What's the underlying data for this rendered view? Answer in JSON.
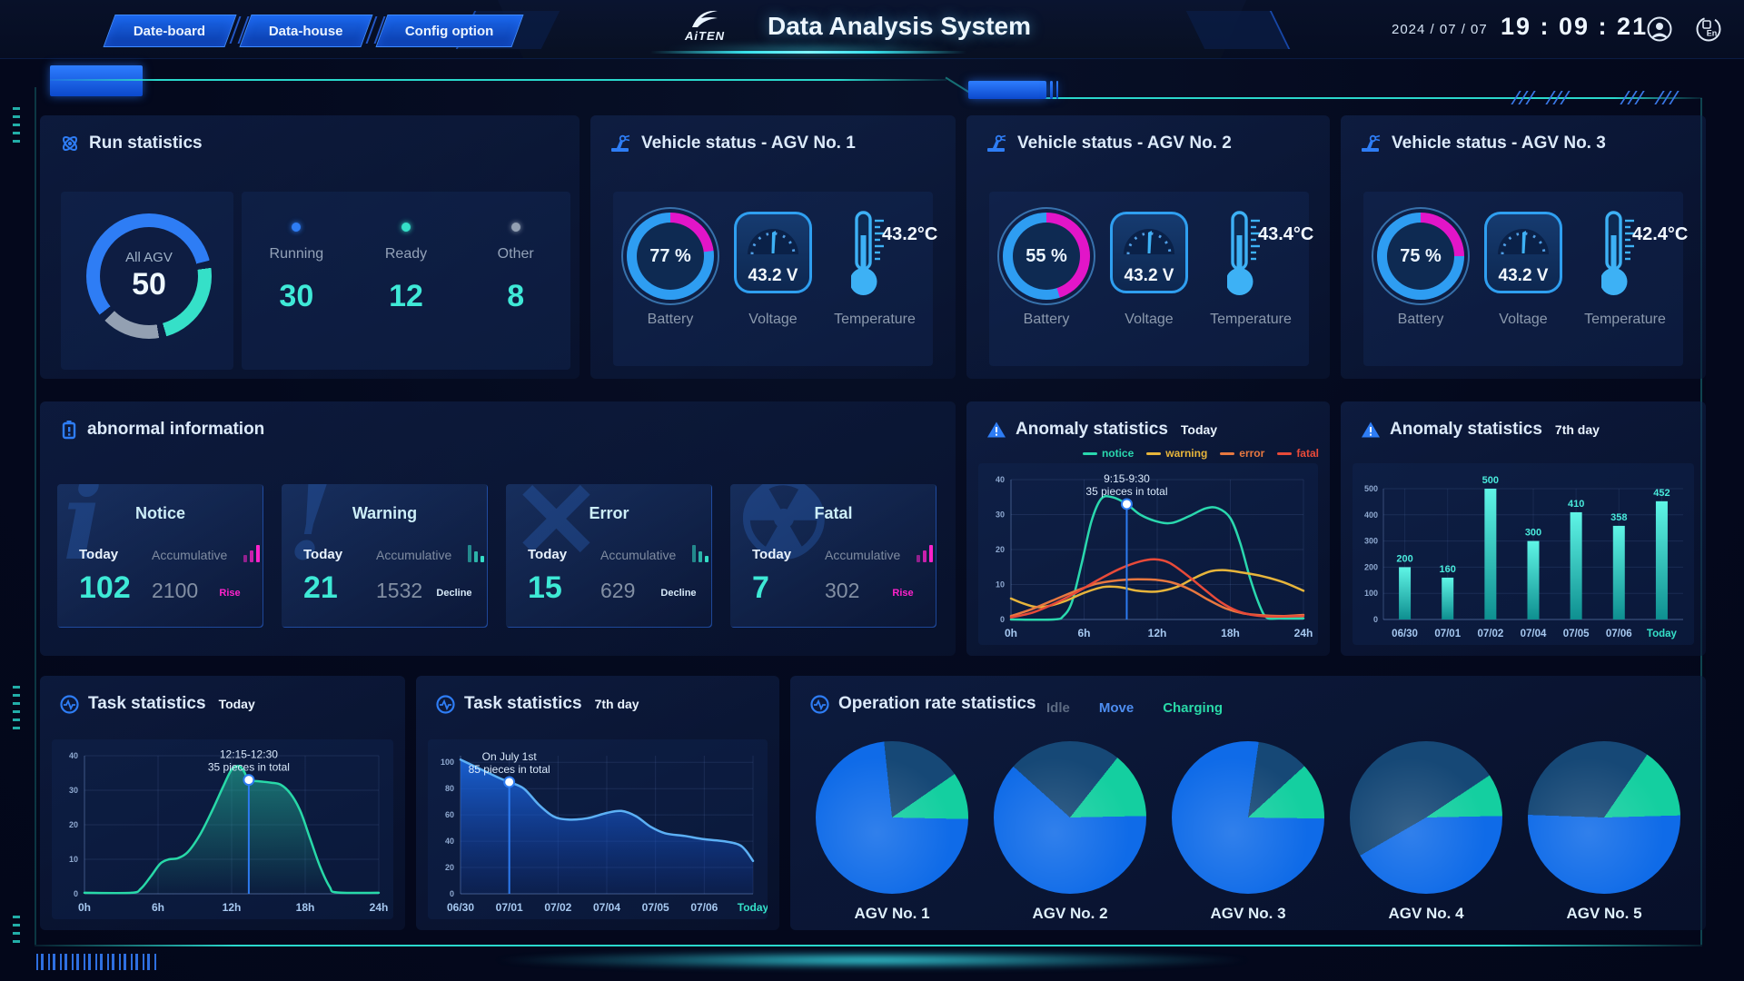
{
  "header": {
    "tabs": [
      {
        "label": "Date-board"
      },
      {
        "label": "Data-house"
      },
      {
        "label": "Config option"
      }
    ],
    "logo_text": "AiTEN",
    "title": "Data Analysis System",
    "date": "2024 / 07 / 07",
    "time": "19 : 09 : 21",
    "language_label": "En"
  },
  "run_statistics": {
    "title": "Run statistics",
    "donut_label": "All AGV",
    "donut_total": "50",
    "donut_segments": [
      {
        "name": "Running",
        "value": 30,
        "color": "#2e7df5"
      },
      {
        "name": "Ready",
        "value": 12,
        "color": "#35e0c8"
      },
      {
        "name": "Other",
        "value": 8,
        "color": "#93a0b2"
      }
    ],
    "statuses": [
      {
        "label": "Running",
        "value": "30",
        "dot_color": "#2e7df5"
      },
      {
        "label": "Ready",
        "value": "12",
        "dot_color": "#35e0c8"
      },
      {
        "label": "Other",
        "value": "8",
        "dot_color": "#93a0b2"
      }
    ]
  },
  "vehicle_status": {
    "battery_label": "Battery",
    "voltage_label": "Voltage",
    "temperature_label": "Temperature",
    "ring_colors": {
      "remaining": "#e215c8",
      "level": "#2e9df2"
    },
    "panels": [
      {
        "title": "Vehicle status - AGV No. 1",
        "battery": "77 %",
        "battery_pct": 77,
        "voltage": "43.2 V",
        "temperature": "43.2°C"
      },
      {
        "title": "Vehicle status - AGV No. 2",
        "battery": "55 %",
        "battery_pct": 55,
        "voltage": "43.2 V",
        "temperature": "43.4°C"
      },
      {
        "title": "Vehicle status - AGV No. 3",
        "battery": "75 %",
        "battery_pct": 75,
        "voltage": "43.2 V",
        "temperature": "42.4°C"
      }
    ]
  },
  "abnormal_information": {
    "title": "abnormal information",
    "today_label": "Today",
    "accumulative_label": "Accumulative",
    "cards": [
      {
        "name": "Notice",
        "watermark": "i",
        "watermark_serif": true,
        "today": "102",
        "accumulative": "2100",
        "trend": "Rise",
        "direction": "up",
        "trend_color": "#ff22cc"
      },
      {
        "name": "Warning",
        "watermark": "!",
        "watermark_serif": true,
        "today": "21",
        "accumulative": "1532",
        "trend": "Decline",
        "direction": "down",
        "trend_color": "#d7e9f8"
      },
      {
        "name": "Error",
        "watermark": "✕",
        "watermark_serif": false,
        "today": "15",
        "accumulative": "629",
        "trend": "Decline",
        "direction": "down",
        "trend_color": "#d7e9f8"
      },
      {
        "name": "Fatal",
        "watermark": "☢",
        "watermark_serif": false,
        "today": "7",
        "accumulative": "302",
        "trend": "Rise",
        "direction": "up",
        "trend_color": "#ff22cc"
      }
    ],
    "trend_bar_colors": {
      "up": "#ff22cc",
      "down": "#35e0c8"
    }
  },
  "chart_data": [
    {
      "id": "anomaly_today",
      "type": "line",
      "panel_title": "Anomaly statistics",
      "subtitle": "Today",
      "xlabels": [
        "0h",
        "6h",
        "12h",
        "18h",
        "24h"
      ],
      "x_range": [
        0,
        24
      ],
      "ylim": [
        0,
        40
      ],
      "yticks": [
        0,
        10,
        20,
        30,
        40
      ],
      "grid": true,
      "legend_position": "top-right",
      "legend": [
        {
          "name": "notice",
          "color": "#2ad8ae"
        },
        {
          "name": "warning",
          "color": "#e7b53b"
        },
        {
          "name": "error",
          "color": "#e87840"
        },
        {
          "name": "fatal",
          "color": "#e84a39"
        }
      ],
      "series": [
        {
          "name": "notice",
          "color": "#2ad8ae",
          "points": [
            [
              0,
              0
            ],
            [
              3.5,
              0
            ],
            [
              4.3,
              1
            ],
            [
              5,
              5
            ],
            [
              5.8,
              16
            ],
            [
              6.6,
              28
            ],
            [
              7.4,
              34.5
            ],
            [
              8.3,
              35
            ],
            [
              9.5,
              33
            ],
            [
              10.6,
              30
            ],
            [
              12,
              28
            ],
            [
              13.2,
              27.6
            ],
            [
              14.6,
              29.5
            ],
            [
              16,
              31.8
            ],
            [
              17,
              31.8
            ],
            [
              18,
              29
            ],
            [
              18.8,
              22
            ],
            [
              19.6,
              12
            ],
            [
              20.4,
              4
            ],
            [
              21,
              0.5
            ],
            [
              22,
              0.3
            ],
            [
              24,
              0.3
            ]
          ]
        },
        {
          "name": "warning",
          "color": "#e7b53b",
          "points": [
            [
              0,
              6
            ],
            [
              1,
              4.6
            ],
            [
              2,
              3.6
            ],
            [
              3,
              3.8
            ],
            [
              4.4,
              5.2
            ],
            [
              6,
              7.6
            ],
            [
              7.6,
              9.3
            ],
            [
              9,
              9.2
            ],
            [
              10.4,
              8.2
            ],
            [
              12,
              8
            ],
            [
              13.6,
              9.3
            ],
            [
              15,
              11.8
            ],
            [
              16.4,
              13.8
            ],
            [
              17.6,
              14.1
            ],
            [
              19,
              13.4
            ],
            [
              20.6,
              12.4
            ],
            [
              22.4,
              10.6
            ],
            [
              24,
              8.2
            ]
          ]
        },
        {
          "name": "error",
          "color": "#e87840",
          "points": [
            [
              0,
              1
            ],
            [
              1.6,
              2.8
            ],
            [
              3.4,
              5.4
            ],
            [
              5.2,
              8
            ],
            [
              7,
              10.2
            ],
            [
              8.8,
              11.2
            ],
            [
              10.4,
              11.5
            ],
            [
              12,
              11.3
            ],
            [
              13.4,
              10.4
            ],
            [
              14.8,
              8.4
            ],
            [
              16.2,
              5.6
            ],
            [
              17.6,
              3.2
            ],
            [
              19,
              1.8
            ],
            [
              20.6,
              1.2
            ],
            [
              22.4,
              1
            ],
            [
              24,
              1.3
            ]
          ]
        },
        {
          "name": "fatal",
          "color": "#e84a39",
          "points": [
            [
              0,
              0.6
            ],
            [
              1.8,
              2
            ],
            [
              3.6,
              4.6
            ],
            [
              5.4,
              7.8
            ],
            [
              7.2,
              11.4
            ],
            [
              9,
              14.6
            ],
            [
              10.6,
              16.6
            ],
            [
              11.8,
              17.2
            ],
            [
              13,
              16.2
            ],
            [
              14.4,
              12.8
            ],
            [
              15.8,
              8.8
            ],
            [
              17.2,
              5
            ],
            [
              18.6,
              2.4
            ],
            [
              20,
              1.2
            ],
            [
              21.6,
              0.8
            ],
            [
              24,
              1
            ]
          ]
        }
      ],
      "annotation": {
        "x": 9.5,
        "y": 33,
        "line1": "9:15-9:30",
        "line2": "35 pieces in total"
      }
    },
    {
      "id": "anomaly_7day",
      "type": "bar",
      "panel_title": "Anomaly statistics",
      "subtitle": "7th day",
      "categories": [
        "06/30",
        "07/01",
        "07/02",
        "07/04",
        "07/05",
        "07/06",
        "Today"
      ],
      "values": [
        200,
        160,
        500,
        300,
        410,
        358,
        452
      ],
      "ylim": [
        0,
        500
      ],
      "yticks": [
        0,
        100,
        200,
        300,
        400,
        500
      ],
      "grid": true,
      "bar_gradient": [
        "#5ff5e6",
        "#0e8f90"
      ],
      "value_label_color": "#49eadb",
      "last_category_color": "#35e0c8"
    },
    {
      "id": "task_today",
      "type": "area",
      "panel_title": "Task statistics",
      "subtitle": "Today",
      "xlabels": [
        "0h",
        "6h",
        "12h",
        "18h",
        "24h"
      ],
      "x_range": [
        0,
        24
      ],
      "ylim": [
        0,
        40
      ],
      "yticks": [
        0,
        10,
        20,
        30,
        40
      ],
      "grid": true,
      "color": "#28d9a8",
      "fill": [
        "rgba(36,190,158,0.55)",
        "rgba(36,190,158,0.02)"
      ],
      "points": [
        [
          0,
          0.3
        ],
        [
          3.8,
          0.3
        ],
        [
          4.6,
          1.5
        ],
        [
          5.4,
          5
        ],
        [
          6.2,
          8.8
        ],
        [
          6.9,
          10
        ],
        [
          7.6,
          10.3
        ],
        [
          8.4,
          12
        ],
        [
          9.4,
          17
        ],
        [
          10.4,
          24
        ],
        [
          11.3,
          31
        ],
        [
          12,
          36
        ],
        [
          12.6,
          37
        ],
        [
          13,
          35.5
        ],
        [
          13.4,
          33
        ],
        [
          14.2,
          32.6
        ],
        [
          15.2,
          32.2
        ],
        [
          16,
          31.6
        ],
        [
          16.8,
          29
        ],
        [
          17.6,
          24
        ],
        [
          18.4,
          16
        ],
        [
          19.2,
          8
        ],
        [
          20,
          2
        ],
        [
          20.6,
          0.4
        ],
        [
          24,
          0.3
        ]
      ],
      "annotation": {
        "x": 13.4,
        "y": 33,
        "line1": "12:15-12:30",
        "line2": "35 pieces in total"
      }
    },
    {
      "id": "task_7day",
      "type": "area",
      "panel_title": "Task statistics",
      "subtitle": "7th day",
      "categories": [
        "06/30",
        "07/01",
        "07/02",
        "07/04",
        "07/05",
        "07/06",
        "Today"
      ],
      "x_range": [
        0,
        6
      ],
      "ylim": [
        0,
        105
      ],
      "yticks": [
        0,
        20,
        40,
        60,
        80,
        100
      ],
      "grid": true,
      "color": "#5cb0f5",
      "fill": [
        "rgba(26,104,226,0.88)",
        "rgba(18,70,190,0.12)"
      ],
      "last_category_color": "#35e0c8",
      "points": [
        [
          0,
          102
        ],
        [
          0.4,
          95
        ],
        [
          0.8,
          88
        ],
        [
          1,
          85
        ],
        [
          1.3,
          80
        ],
        [
          1.6,
          68
        ],
        [
          1.9,
          59
        ],
        [
          2.2,
          56.5
        ],
        [
          2.6,
          57.5
        ],
        [
          3,
          61.5
        ],
        [
          3.3,
          63
        ],
        [
          3.6,
          59
        ],
        [
          3.9,
          51
        ],
        [
          4.2,
          46
        ],
        [
          4.6,
          44
        ],
        [
          5,
          41.5
        ],
        [
          5.4,
          40
        ],
        [
          5.7,
          37.5
        ],
        [
          5.85,
          33
        ],
        [
          6,
          25
        ]
      ],
      "annotation": {
        "x": 1,
        "y": 85,
        "line1": "On July 1st",
        "line2": "85 pieces in total"
      }
    },
    {
      "id": "operation_rate",
      "type": "pie",
      "panel_title": "Operation rate statistics",
      "legend": [
        {
          "name": "Idle",
          "color": "#5c6a82"
        },
        {
          "name": "Move",
          "color": "#4d8df0"
        },
        {
          "name": "Charging",
          "color": "#29d9a7"
        }
      ],
      "slice_colors": {
        "idle": "#164876",
        "move": "#0f6be8",
        "charging": "#14cfa0"
      },
      "pies": [
        {
          "name": "AGV No. 1",
          "start": -6,
          "idle": 17,
          "charging": 10,
          "move": 73
        },
        {
          "name": "AGV No. 2",
          "start": -48,
          "idle": 24,
          "charging": 14,
          "move": 62
        },
        {
          "name": "AGV No. 3",
          "start": 8,
          "idle": 11,
          "charging": 12,
          "move": 77
        },
        {
          "name": "AGV No. 4",
          "start": -120,
          "idle": 49,
          "charging": 9,
          "move": 42
        },
        {
          "name": "AGV No. 5",
          "start": -88,
          "idle": 34,
          "charging": 15,
          "move": 51
        }
      ]
    }
  ]
}
